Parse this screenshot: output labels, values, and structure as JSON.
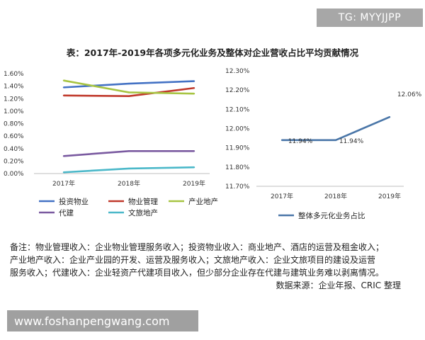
{
  "watermarks": {
    "top": "TG: MYYJJPP",
    "bottom": "www.foshanpengwang.com"
  },
  "title": "表：2017年-2019年各项多元化业务及整体对企业营收占比平均贡献情况",
  "colors": {
    "investment": "#4472c4",
    "property_mgmt": "#c0392b",
    "industrial_estate": "#a7c442",
    "agent_build": "#7a5aa0",
    "culture_tourism": "#4bb8c9",
    "overall": "#4a76a8"
  },
  "chart_data": [
    {
      "type": "line",
      "x": [
        "2017年",
        "2018年",
        "2019年"
      ],
      "ylim": [
        0,
        0.016
      ],
      "y_ticks": [
        "0.00%",
        "0.20%",
        "0.40%",
        "0.60%",
        "0.80%",
        "1.00%",
        "1.20%",
        "1.40%",
        "1.60%"
      ],
      "grid": false,
      "legend_position": "bottom",
      "series": [
        {
          "name": "投资物业",
          "color_key": "investment",
          "values": [
            0.0138,
            0.0144,
            0.0148
          ]
        },
        {
          "name": "物业管理",
          "color_key": "property_mgmt",
          "values": [
            0.0125,
            0.0124,
            0.0137
          ]
        },
        {
          "name": "产业地产",
          "color_key": "industrial_estate",
          "values": [
            0.0149,
            0.013,
            0.0128
          ]
        },
        {
          "name": "代建",
          "color_key": "agent_build",
          "values": [
            0.0028,
            0.0036,
            0.0036
          ]
        },
        {
          "name": "文旅地产",
          "color_key": "culture_tourism",
          "values": [
            0.0002,
            0.0008,
            0.001
          ]
        }
      ]
    },
    {
      "type": "line",
      "x": [
        "2017年",
        "2018年",
        "2019年"
      ],
      "ylim": [
        0.117,
        0.123
      ],
      "y_ticks": [
        "11.70%",
        "11.80%",
        "11.90%",
        "12.00%",
        "12.10%",
        "12.20%",
        "12.30%"
      ],
      "grid": false,
      "legend_position": "bottom",
      "series": [
        {
          "name": "整体多元化业务占比",
          "color_key": "overall",
          "values": [
            0.1194,
            0.1194,
            0.1206
          ]
        }
      ],
      "data_labels": [
        "11.94%",
        "11.94%",
        "12.06%"
      ]
    }
  ],
  "notes": {
    "lines": [
      "备注：物业管理收入：企业物业管理服务收入；投资物业收入：商业地产、酒店的运营及租金收入；",
      "产业地产收入：企业产业园的开发、运营及服务收入；文旅地产收入：企业文旅项目的建设及运营",
      "服务收入；代建收入：企业轻资产代建项目收入，但少部分企业存在代建与建筑业务难以剥离情况。"
    ],
    "source": "数据来源：企业年报、CRIC 整理"
  }
}
